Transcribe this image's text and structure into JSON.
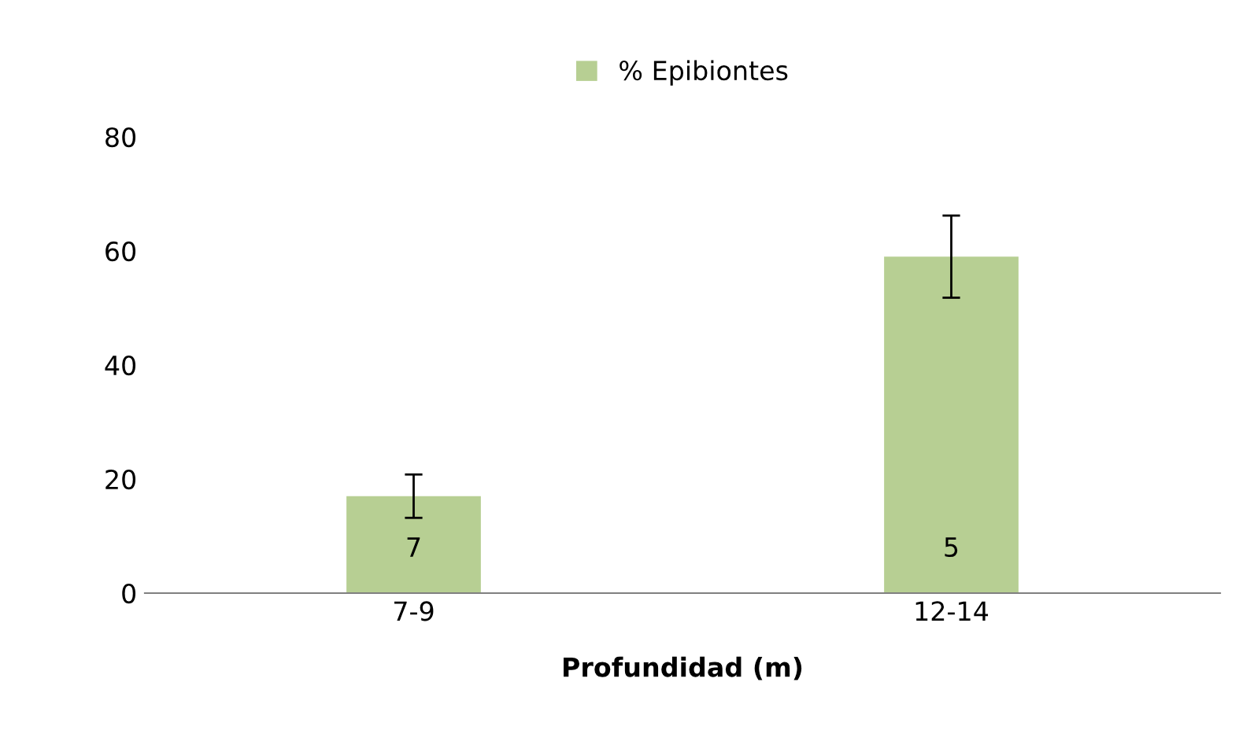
{
  "chart_data": {
    "type": "bar",
    "xlabel": "Profundidad (m)",
    "categories": [
      "7-9",
      "12-14"
    ],
    "series": [
      {
        "name": "% Epibiontes",
        "color": "#b7cf93",
        "values": [
          17,
          59
        ],
        "errors": [
          3.8,
          7.2
        ]
      }
    ],
    "ylim": [
      0,
      80
    ],
    "yticks": [
      0,
      20,
      40,
      60,
      80
    ],
    "grid": false,
    "legend": "top",
    "annotations": [
      "7",
      "5"
    ]
  }
}
